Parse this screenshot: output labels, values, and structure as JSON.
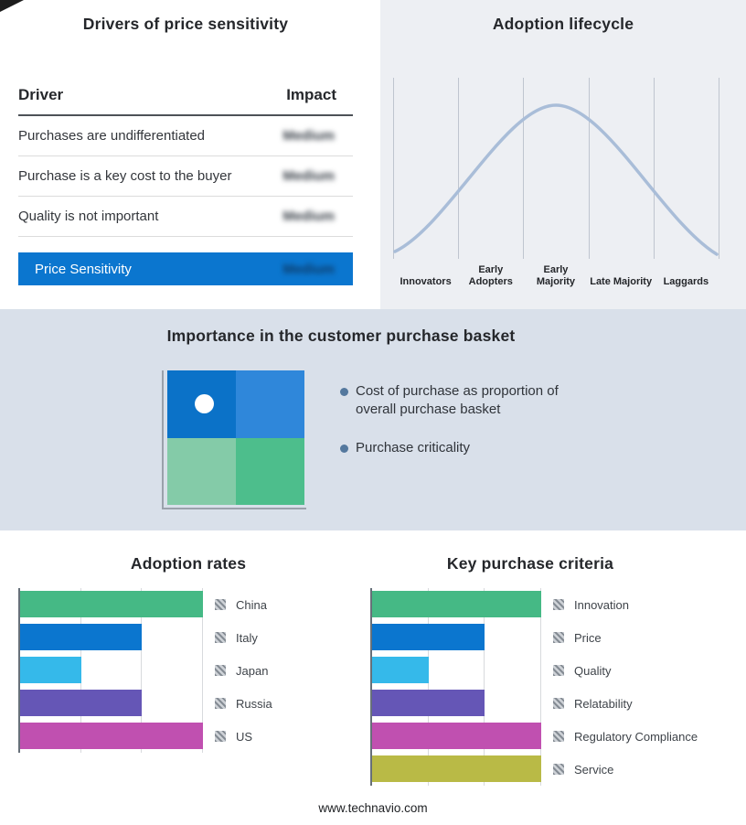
{
  "footer": "www.technavio.com",
  "colors": {
    "summary_bar": "#0b76cf",
    "section_band": "#d9e0ea",
    "gray_panel": "#edeff3",
    "curve": "#a9bdd8"
  },
  "drivers_table": {
    "title": "Drivers of price sensitivity",
    "col_driver": "Driver",
    "col_impact": "Impact",
    "rows": [
      {
        "driver": "Purchases are undifferentiated",
        "impact": "Medium"
      },
      {
        "driver": "Purchase is a key cost to the buyer",
        "impact": "Medium"
      },
      {
        "driver": "Quality is not important",
        "impact": "Medium"
      }
    ],
    "summary": {
      "label": "Price Sensitivity",
      "impact": "Medium"
    }
  },
  "adoption_lifecycle": {
    "title": "Adoption lifecycle",
    "stages": [
      "Innovators",
      "Early Adopters",
      "Early Majority",
      "Late Majority",
      "Laggards"
    ]
  },
  "purchase_basket": {
    "title": "Importance in the customer purchase basket",
    "bullets": [
      "Cost of purchase as proportion of overall purchase basket",
      "Purchase criticality"
    ],
    "quadrant_colors": {
      "top_left": "#0b72c8",
      "top_right": "#2f87da",
      "bottom_left": "#84cba8",
      "bottom_right": "#4dbe8c",
      "dot": "#ffffff"
    }
  },
  "chart_data": [
    {
      "type": "bar",
      "orientation": "horizontal",
      "title": "Adoption rates",
      "categories": [
        "China",
        "Italy",
        "Japan",
        "Russia",
        "US"
      ],
      "values": [
        3,
        2,
        1,
        2,
        3
      ],
      "colors": [
        "#45b985",
        "#0b76cf",
        "#35b9ea",
        "#6556b6",
        "#c050b0"
      ],
      "xlim": [
        0,
        3
      ],
      "grid": true,
      "legend_position": "right",
      "xlabel": "",
      "ylabel": ""
    },
    {
      "type": "bar",
      "orientation": "horizontal",
      "title": "Key purchase criteria",
      "categories": [
        "Innovation",
        "Price",
        "Quality",
        "Relatability",
        "Regulatory Compliance",
        "Service"
      ],
      "values": [
        3,
        2,
        1,
        2,
        3,
        3
      ],
      "colors": [
        "#45b985",
        "#0b76cf",
        "#35b9ea",
        "#6556b6",
        "#c050b0",
        "#b9ba46"
      ],
      "xlim": [
        0,
        3
      ],
      "grid": true,
      "legend_position": "right",
      "xlabel": "",
      "ylabel": ""
    }
  ]
}
